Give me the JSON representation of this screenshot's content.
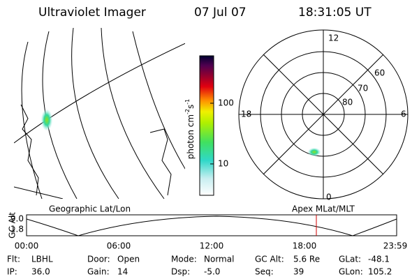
{
  "header": {
    "title": "Ultraviolet Imager",
    "date": "07 Jul 07",
    "time": "18:31:05 UT"
  },
  "colorbar": {
    "label": [
      "photon cm",
      "-2",
      "s",
      "-1"
    ],
    "ticks": [
      "100",
      "10"
    ]
  },
  "polar": {
    "hours": [
      "12",
      "18",
      "6",
      "0"
    ],
    "latitudes": [
      "60",
      "70",
      "80"
    ]
  },
  "map_labels": {
    "geographic": "Geographic Lat/Lon",
    "apex": "Apex MLat/MLT"
  },
  "altitude": {
    "axis_label": "GC Alt",
    "yticks": [
      "9.0",
      "1.8"
    ],
    "xticks": [
      "00:00",
      "06:00",
      "12:00",
      "18:00",
      "23:59"
    ]
  },
  "footer": {
    "rows": [
      [
        {
          "label": "Flt:",
          "value": "LBHL"
        },
        {
          "label": "Door:",
          "value": "Open"
        },
        {
          "label": "Mode:",
          "value": "Normal"
        },
        {
          "label": "GC Alt:",
          "value": "5.6 Re"
        },
        {
          "label": "GLat:",
          "value": "-48.1"
        }
      ],
      [
        {
          "label": "IP:",
          "value": "36.0"
        },
        {
          "label": "Gain:",
          "value": "14"
        },
        {
          "label": "Dsp:",
          "value": "-5.0"
        },
        {
          "label": "Seq:",
          "value": "39"
        },
        {
          "label": "GLon:",
          "value": "105.2"
        }
      ]
    ]
  }
}
